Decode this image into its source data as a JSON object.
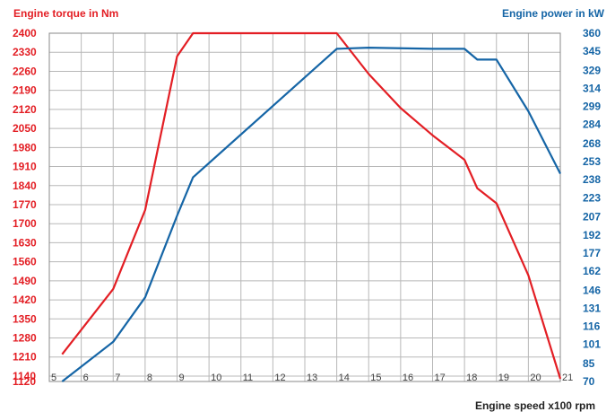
{
  "chart_data": {
    "type": "line",
    "left_axis": {
      "title": "Engine torque in Nm",
      "ticks": [
        1120,
        1140,
        1210,
        1280,
        1350,
        1420,
        1490,
        1560,
        1630,
        1700,
        1770,
        1840,
        1910,
        1980,
        2050,
        2120,
        2190,
        2260,
        2330,
        2400
      ],
      "ylim": [
        1120,
        2400
      ],
      "color": "#e31e24"
    },
    "right_axis": {
      "title": "Engine power in kW",
      "ticks": [
        70,
        85,
        101,
        116,
        131,
        146,
        162,
        177,
        192,
        207,
        223,
        238,
        253,
        268,
        284,
        299,
        314,
        329,
        345,
        360
      ],
      "ylim": [
        70,
        360
      ],
      "color": "#1565a6"
    },
    "x_axis": {
      "title": "Engine speed x100 rpm",
      "ticks": [
        5,
        6,
        7,
        8,
        9,
        10,
        11,
        12,
        13,
        14,
        15,
        16,
        17,
        18,
        19,
        20,
        21
      ],
      "xlim": [
        5,
        21
      ]
    },
    "grid": true,
    "series": [
      {
        "axis": "left",
        "color": "#e31e24",
        "points": [
          [
            5.4,
            1220
          ],
          [
            7.0,
            1460
          ],
          [
            8.0,
            1750
          ],
          [
            9.0,
            2315
          ],
          [
            9.5,
            2400
          ],
          [
            14.0,
            2400
          ],
          [
            15.0,
            2250
          ],
          [
            16.0,
            2125
          ],
          [
            17.0,
            2025
          ],
          [
            18.0,
            1935
          ],
          [
            18.4,
            1830
          ],
          [
            19.0,
            1775
          ],
          [
            20.0,
            1510
          ],
          [
            21.0,
            1130
          ]
        ]
      },
      {
        "axis": "right",
        "color": "#1565a6",
        "points": [
          [
            5.4,
            70
          ],
          [
            7.0,
            103
          ],
          [
            8.0,
            140
          ],
          [
            9.0,
            208
          ],
          [
            9.5,
            240
          ],
          [
            14.0,
            347
          ],
          [
            15.0,
            348
          ],
          [
            17.0,
            347
          ],
          [
            18.0,
            347
          ],
          [
            18.4,
            338
          ],
          [
            19.0,
            338
          ],
          [
            20.0,
            295
          ],
          [
            21.0,
            243
          ]
        ]
      }
    ]
  }
}
